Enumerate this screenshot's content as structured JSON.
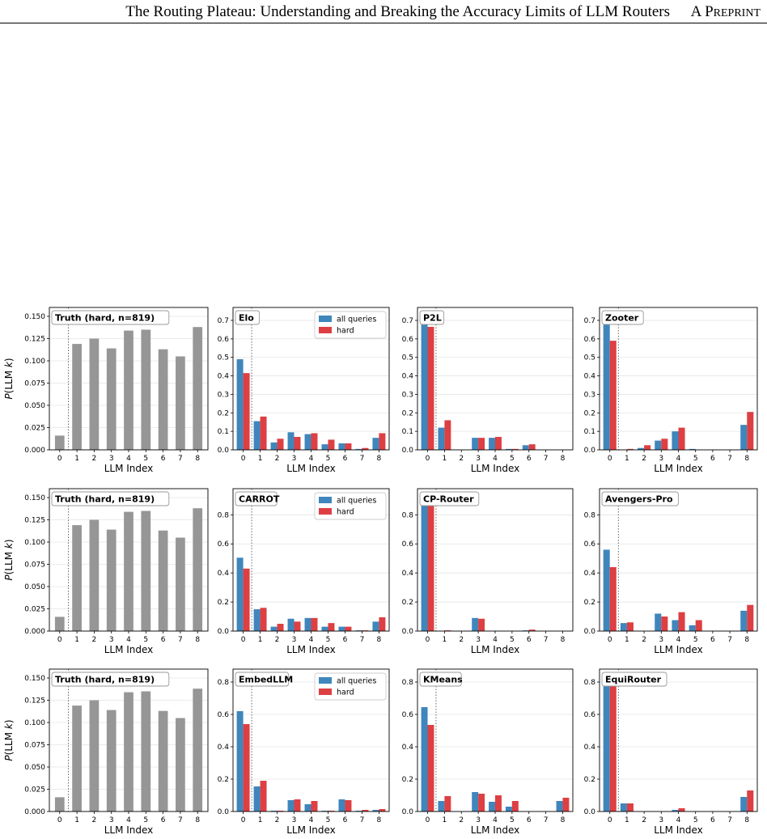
{
  "header": {
    "title": "The Routing Plateau: Understanding and Breaking the Accuracy Limits of LLM Routers",
    "preprint_a": "A P",
    "preprint_rest": "REPRINT"
  },
  "colors": {
    "all_queries": "#3f86bc",
    "hard": "#dd3f43",
    "truth": "#969696"
  },
  "legend": [
    "all queries",
    "hard"
  ],
  "chart_data": [
    {
      "type": "bar",
      "title": "Truth (hard, n=819)",
      "xlabel": "LLM Index",
      "ylabel": "P(LLM k)",
      "categories": [
        "0",
        "1",
        "2",
        "3",
        "4",
        "5",
        "6",
        "7",
        "8"
      ],
      "ylim": [
        0,
        0.16
      ],
      "yticks": [
        0,
        0.025,
        0.05,
        0.075,
        0.1,
        0.125,
        0.15
      ],
      "series": [
        {
          "values": [
            0.016,
            0.119,
            0.125,
            0.114,
            0.134,
            0.135,
            0.113,
            0.105,
            0.138
          ]
        }
      ]
    },
    {
      "type": "bar",
      "title": "Elo",
      "xlabel": "LLM Index",
      "categories": [
        "0",
        "1",
        "2",
        "3",
        "4",
        "5",
        "6",
        "7",
        "8"
      ],
      "ylim": [
        0,
        0.77
      ],
      "yticks": [
        0,
        0.1,
        0.2,
        0.3,
        0.4,
        0.5,
        0.6,
        0.7
      ],
      "legend": true,
      "series": [
        {
          "name": "all queries",
          "values": [
            0.49,
            0.155,
            0.04,
            0.095,
            0.085,
            0.03,
            0.035,
            0.005,
            0.065
          ]
        },
        {
          "name": "hard",
          "values": [
            0.415,
            0.18,
            0.06,
            0.07,
            0.09,
            0.055,
            0.035,
            0.01,
            0.09
          ]
        }
      ]
    },
    {
      "type": "bar",
      "title": "P2L",
      "xlabel": "LLM Index",
      "categories": [
        "0",
        "1",
        "2",
        "3",
        "4",
        "5",
        "6",
        "7",
        "8"
      ],
      "ylim": [
        0,
        0.77
      ],
      "yticks": [
        0,
        0.1,
        0.2,
        0.3,
        0.4,
        0.5,
        0.6,
        0.7
      ],
      "series": [
        {
          "name": "all queries",
          "values": [
            0.69,
            0.12,
            0.0,
            0.065,
            0.065,
            0.005,
            0.025,
            0.0,
            0.0
          ]
        },
        {
          "name": "hard",
          "values": [
            0.665,
            0.16,
            0.0,
            0.065,
            0.07,
            0.005,
            0.03,
            0.0,
            0.0
          ]
        }
      ]
    },
    {
      "type": "bar",
      "title": "Zooter",
      "xlabel": "LLM Index",
      "categories": [
        "0",
        "1",
        "2",
        "3",
        "4",
        "5",
        "6",
        "7",
        "8"
      ],
      "ylim": [
        0,
        0.77
      ],
      "yticks": [
        0,
        0.1,
        0.2,
        0.3,
        0.4,
        0.5,
        0.6,
        0.7
      ],
      "series": [
        {
          "name": "all queries",
          "values": [
            0.69,
            0.0,
            0.01,
            0.05,
            0.1,
            0.005,
            0.0,
            0.0,
            0.135
          ]
        },
        {
          "name": "hard",
          "values": [
            0.59,
            0.005,
            0.025,
            0.06,
            0.12,
            0.0,
            0.0,
            0.0,
            0.205
          ]
        }
      ]
    },
    {
      "type": "bar",
      "title": "Truth (hard, n=819)",
      "xlabel": "LLM Index",
      "ylabel": "P(LLM k)",
      "categories": [
        "0",
        "1",
        "2",
        "3",
        "4",
        "5",
        "6",
        "7",
        "8"
      ],
      "ylim": [
        0,
        0.16
      ],
      "yticks": [
        0,
        0.025,
        0.05,
        0.075,
        0.1,
        0.125,
        0.15
      ],
      "series": [
        {
          "values": [
            0.016,
            0.119,
            0.125,
            0.114,
            0.134,
            0.135,
            0.113,
            0.105,
            0.138
          ]
        }
      ]
    },
    {
      "type": "bar",
      "title": "CARROT",
      "xlabel": "LLM Index",
      "categories": [
        "0",
        "1",
        "2",
        "3",
        "4",
        "5",
        "6",
        "7",
        "8"
      ],
      "ylim": [
        0,
        0.98
      ],
      "yticks": [
        0,
        0.2,
        0.4,
        0.6,
        0.8
      ],
      "legend": true,
      "series": [
        {
          "name": "all queries",
          "values": [
            0.505,
            0.15,
            0.03,
            0.085,
            0.09,
            0.03,
            0.03,
            0.005,
            0.065
          ]
        },
        {
          "name": "hard",
          "values": [
            0.43,
            0.16,
            0.05,
            0.065,
            0.09,
            0.055,
            0.03,
            0.005,
            0.095
          ]
        }
      ]
    },
    {
      "type": "bar",
      "title": "CP-Router",
      "xlabel": "LLM Index",
      "categories": [
        "0",
        "1",
        "2",
        "3",
        "4",
        "5",
        "6",
        "7",
        "8"
      ],
      "ylim": [
        0,
        0.98
      ],
      "yticks": [
        0,
        0.2,
        0.4,
        0.6,
        0.8
      ],
      "series": [
        {
          "name": "all queries",
          "values": [
            0.88,
            0.0,
            0.0,
            0.09,
            0.0,
            0.0,
            0.005,
            0.0,
            0.0
          ]
        },
        {
          "name": "hard",
          "values": [
            0.88,
            0.005,
            0.0,
            0.085,
            0.0,
            0.0,
            0.01,
            0.0,
            0.0
          ]
        }
      ]
    },
    {
      "type": "bar",
      "title": "Avengers-Pro",
      "xlabel": "LLM Index",
      "categories": [
        "0",
        "1",
        "2",
        "3",
        "4",
        "5",
        "6",
        "7",
        "8"
      ],
      "ylim": [
        0,
        0.98
      ],
      "yticks": [
        0,
        0.2,
        0.4,
        0.6,
        0.8
      ],
      "series": [
        {
          "name": "all queries",
          "values": [
            0.56,
            0.055,
            0.0,
            0.12,
            0.075,
            0.04,
            0.0,
            0.0,
            0.14
          ]
        },
        {
          "name": "hard",
          "values": [
            0.44,
            0.06,
            0.0,
            0.1,
            0.13,
            0.075,
            0.0,
            0.0,
            0.18
          ]
        }
      ]
    },
    {
      "type": "bar",
      "title": "Truth (hard, n=819)",
      "xlabel": "LLM Index",
      "ylabel": "P(LLM k)",
      "categories": [
        "0",
        "1",
        "2",
        "3",
        "4",
        "5",
        "6",
        "7",
        "8"
      ],
      "ylim": [
        0,
        0.16
      ],
      "yticks": [
        0,
        0.025,
        0.05,
        0.075,
        0.1,
        0.125,
        0.15
      ],
      "series": [
        {
          "values": [
            0.016,
            0.119,
            0.125,
            0.114,
            0.134,
            0.135,
            0.113,
            0.105,
            0.138
          ]
        }
      ]
    },
    {
      "type": "bar",
      "title": "EmbedLLM",
      "xlabel": "LLM Index",
      "categories": [
        "0",
        "1",
        "2",
        "3",
        "4",
        "5",
        "6",
        "7",
        "8"
      ],
      "ylim": [
        0,
        0.88
      ],
      "yticks": [
        0,
        0.2,
        0.4,
        0.6,
        0.8
      ],
      "legend": true,
      "series": [
        {
          "name": "all queries",
          "values": [
            0.62,
            0.155,
            0.005,
            0.07,
            0.045,
            0.005,
            0.075,
            0.005,
            0.01
          ]
        },
        {
          "name": "hard",
          "values": [
            0.54,
            0.19,
            0.005,
            0.075,
            0.065,
            0.005,
            0.07,
            0.01,
            0.015
          ]
        }
      ]
    },
    {
      "type": "bar",
      "title": "KMeans",
      "xlabel": "LLM Index",
      "categories": [
        "0",
        "1",
        "2",
        "3",
        "4",
        "5",
        "6",
        "7",
        "8"
      ],
      "ylim": [
        0,
        0.88
      ],
      "yticks": [
        0,
        0.2,
        0.4,
        0.6,
        0.8
      ],
      "series": [
        {
          "name": "all queries",
          "values": [
            0.645,
            0.065,
            0.0,
            0.12,
            0.06,
            0.03,
            0.0,
            0.0,
            0.065
          ]
        },
        {
          "name": "hard",
          "values": [
            0.535,
            0.095,
            0.0,
            0.11,
            0.1,
            0.065,
            0.0,
            0.0,
            0.085
          ]
        }
      ]
    },
    {
      "type": "bar",
      "title": "EquiRouter",
      "xlabel": "LLM Index",
      "categories": [
        "0",
        "1",
        "2",
        "3",
        "4",
        "5",
        "6",
        "7",
        "8"
      ],
      "ylim": [
        0,
        0.88
      ],
      "yticks": [
        0,
        0.2,
        0.4,
        0.6,
        0.8
      ],
      "series": [
        {
          "name": "all queries",
          "values": [
            0.82,
            0.05,
            0.0,
            0.0,
            0.01,
            0.0,
            0.0,
            0.0,
            0.09
          ]
        },
        {
          "name": "hard",
          "values": [
            0.785,
            0.05,
            0.0,
            0.0,
            0.02,
            0.0,
            0.0,
            0.0,
            0.13
          ]
        }
      ]
    }
  ]
}
